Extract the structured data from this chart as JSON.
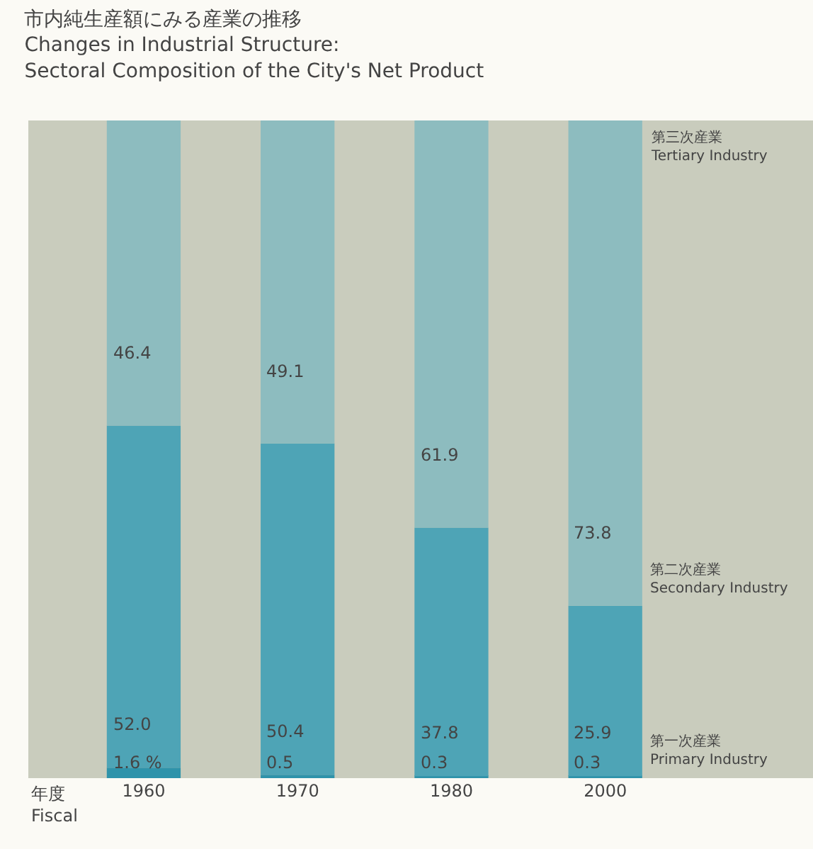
{
  "chart_data": {
    "type": "bar",
    "stacked": true,
    "title": "市内純生産額にみる産業の推移\nChanges in Industrial Structure:\nSectoral Composition of the City's Net Product",
    "xlabel": "年度\nFiscal",
    "categories": [
      "1960",
      "1970",
      "1980",
      "2000"
    ],
    "ylim": [
      0,
      100
    ],
    "legend": false,
    "grid": false,
    "series": [
      {
        "name": "第一次産業\nPrimary Industry",
        "color": "#2f93aa",
        "values": [
          1.6,
          0.5,
          0.3,
          0.3
        ],
        "value_labels": [
          "1.6 %",
          "0.5",
          "0.3",
          "0.3"
        ]
      },
      {
        "name": "第二次産業\nSecondary Industry",
        "color": "#4ea4b6",
        "values": [
          52.0,
          50.4,
          37.8,
          25.9
        ],
        "value_labels": [
          "52.0",
          "50.4",
          "37.8",
          "25.9"
        ]
      },
      {
        "name": "第三次産業\nTertiary Industry",
        "color": "#8dbcbf",
        "values": [
          46.4,
          49.1,
          61.9,
          73.8
        ],
        "value_labels": [
          "46.4",
          "49.1",
          "61.9",
          "73.8"
        ]
      }
    ]
  }
}
